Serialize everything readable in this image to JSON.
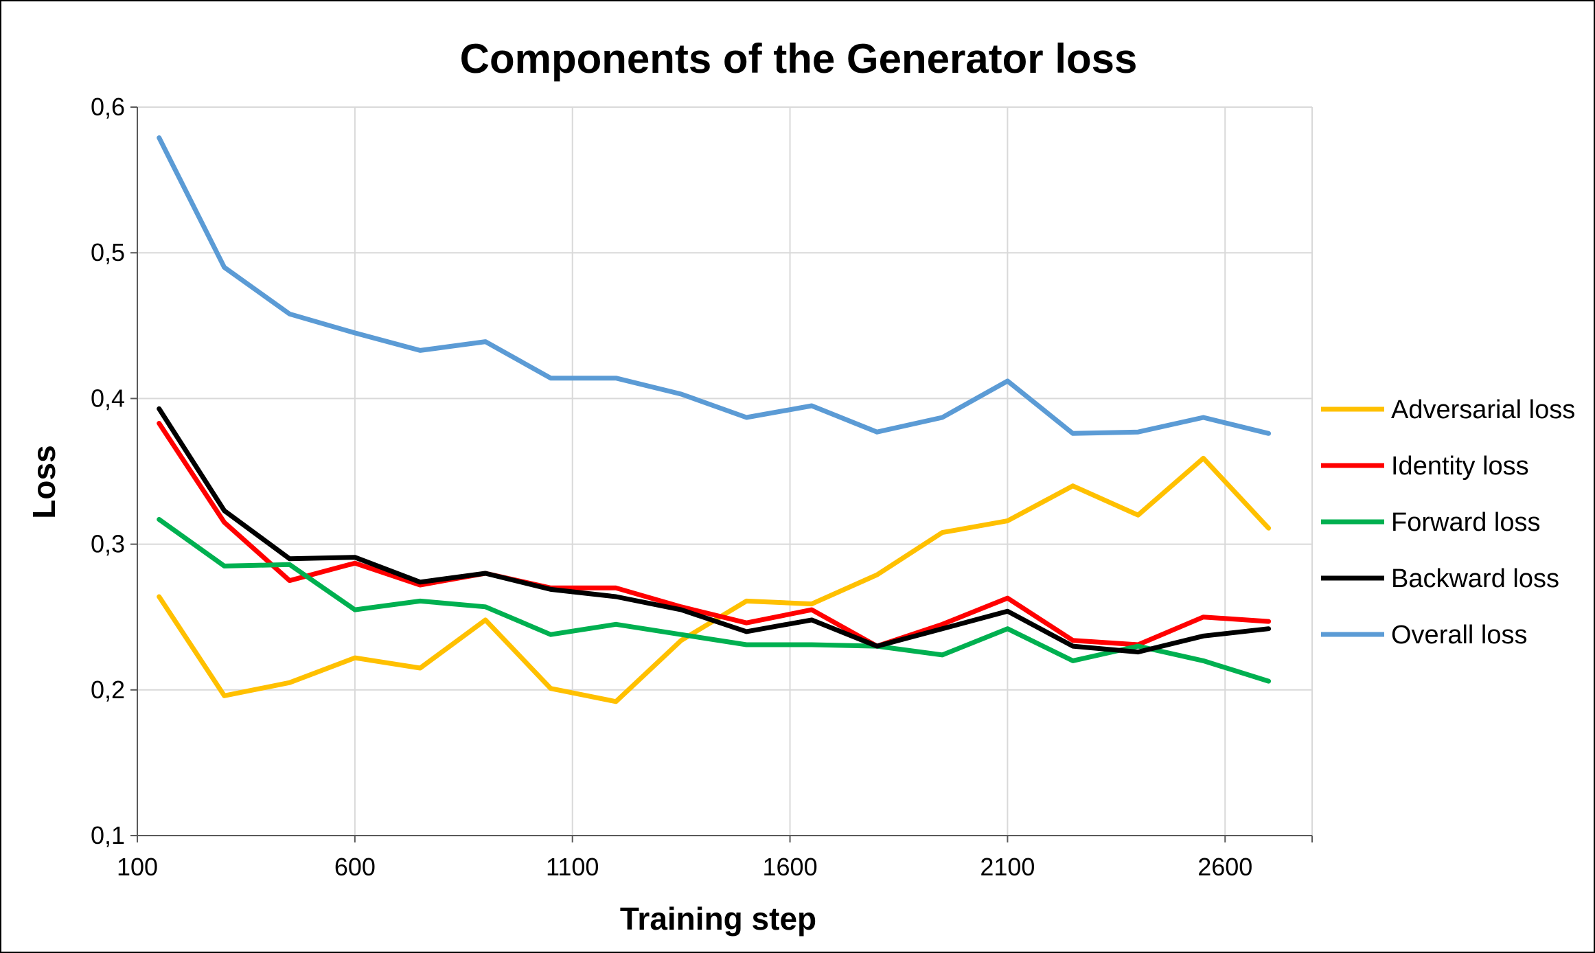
{
  "chart_data": {
    "type": "line",
    "title": "Components of the Generator loss",
    "xlabel": "Training step",
    "ylabel": "Loss",
    "xlim": [
      100,
      2800
    ],
    "ylim": [
      0.1,
      0.6
    ],
    "xticks": [
      100,
      600,
      1100,
      1600,
      2100,
      2600
    ],
    "xtick_labels": [
      "100",
      "600",
      "1100",
      "1600",
      "2100",
      "2600"
    ],
    "yticks": [
      0.1,
      0.2,
      0.3,
      0.4,
      0.5,
      0.6
    ],
    "ytick_labels": [
      "0,1",
      "0,2",
      "0,3",
      "0,4",
      "0,5",
      "0,6"
    ],
    "grid": true,
    "legend_position": "right",
    "x": [
      150,
      300,
      450,
      600,
      750,
      900,
      1050,
      1200,
      1350,
      1500,
      1650,
      1800,
      1950,
      2100,
      2250,
      2400,
      2550,
      2700
    ],
    "series": [
      {
        "name": "Adversarial loss",
        "color": "#FFC000",
        "values": [
          0.264,
          0.196,
          0.205,
          0.222,
          0.215,
          0.248,
          0.201,
          0.192,
          0.234,
          0.261,
          0.259,
          0.279,
          0.308,
          0.316,
          0.34,
          0.32,
          0.359,
          0.311
        ]
      },
      {
        "name": "Identity loss",
        "color": "#FF0000",
        "values": [
          0.383,
          0.315,
          0.275,
          0.287,
          0.272,
          0.28,
          0.27,
          0.27,
          0.257,
          0.246,
          0.255,
          0.23,
          0.245,
          0.263,
          0.234,
          0.231,
          0.25,
          0.247
        ]
      },
      {
        "name": "Forward loss",
        "color": "#00B050",
        "values": [
          0.317,
          0.285,
          0.286,
          0.255,
          0.261,
          0.257,
          0.238,
          0.245,
          0.238,
          0.231,
          0.231,
          0.23,
          0.224,
          0.242,
          0.22,
          0.23,
          0.22,
          0.206
        ]
      },
      {
        "name": "Backward loss",
        "color": "#000000",
        "values": [
          0.393,
          0.323,
          0.29,
          0.291,
          0.274,
          0.28,
          0.269,
          0.264,
          0.255,
          0.24,
          0.248,
          0.23,
          0.242,
          0.254,
          0.23,
          0.226,
          0.237,
          0.242
        ]
      },
      {
        "name": "Overall loss",
        "color": "#5B9BD5",
        "values": [
          0.579,
          0.49,
          0.458,
          0.445,
          0.433,
          0.439,
          0.414,
          0.414,
          0.403,
          0.387,
          0.395,
          0.377,
          0.387,
          0.412,
          0.376,
          0.377,
          0.387,
          0.376
        ]
      }
    ]
  }
}
